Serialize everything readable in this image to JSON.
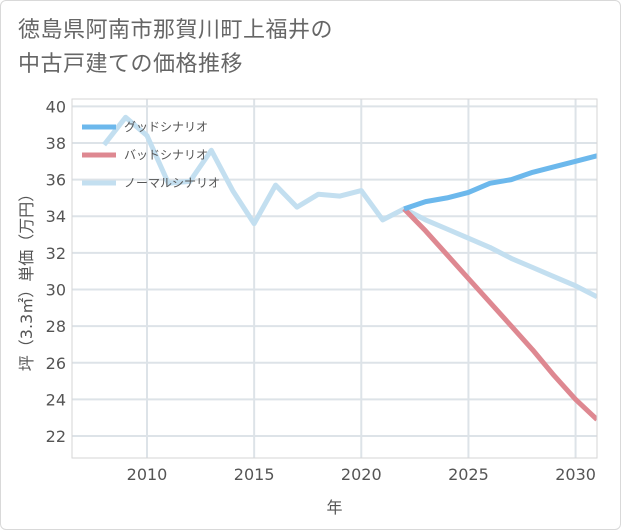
{
  "title_lines": [
    "徳島県阿南市那賀川町上福井の",
    "中古戸建ての価格推移"
  ],
  "chart_data": {
    "type": "line",
    "title": "徳島県阿南市那賀川町上福井の中古戸建ての価格推移",
    "xlabel": "年",
    "ylabel": "坪（3.3㎡）単価（万円）",
    "xlim": [
      2006.5,
      2031
    ],
    "ylim": [
      20.8,
      40.4
    ],
    "xticks": [
      2010,
      2015,
      2020,
      2025,
      2030
    ],
    "yticks": [
      22,
      24,
      26,
      28,
      30,
      32,
      34,
      36,
      38,
      40
    ],
    "grid": true,
    "legend_position": "top-left",
    "series": [
      {
        "name": "グッドシナリオ",
        "color": "#6cb8ec",
        "x": [
          2022,
          2023,
          2024,
          2025,
          2026,
          2027,
          2028,
          2029,
          2030,
          2031
        ],
        "y": [
          34.4,
          34.8,
          35.0,
          35.3,
          35.8,
          36.0,
          36.4,
          36.7,
          37.0,
          37.3
        ]
      },
      {
        "name": "バッドシナリオ",
        "color": "#de8891",
        "x": [
          2022,
          2023,
          2024,
          2025,
          2026,
          2027,
          2028,
          2029,
          2030,
          2031
        ],
        "y": [
          34.4,
          33.2,
          31.9,
          30.6,
          29.3,
          28.0,
          26.7,
          25.3,
          24.0,
          22.9
        ]
      },
      {
        "name": "ノーマルシナリオ",
        "color": "#c3dff0",
        "x": [
          2008,
          2009,
          2010,
          2011,
          2012,
          2013,
          2014,
          2015,
          2016,
          2017,
          2018,
          2019,
          2020,
          2021,
          2022,
          2023,
          2024,
          2025,
          2026,
          2027,
          2028,
          2029,
          2030,
          2031
        ],
        "y": [
          37.9,
          39.4,
          38.4,
          35.8,
          35.9,
          37.6,
          35.4,
          33.6,
          35.7,
          34.5,
          35.2,
          35.1,
          35.4,
          33.8,
          34.4,
          33.8,
          33.3,
          32.8,
          32.3,
          31.7,
          31.2,
          30.7,
          30.2,
          29.6
        ]
      }
    ]
  }
}
